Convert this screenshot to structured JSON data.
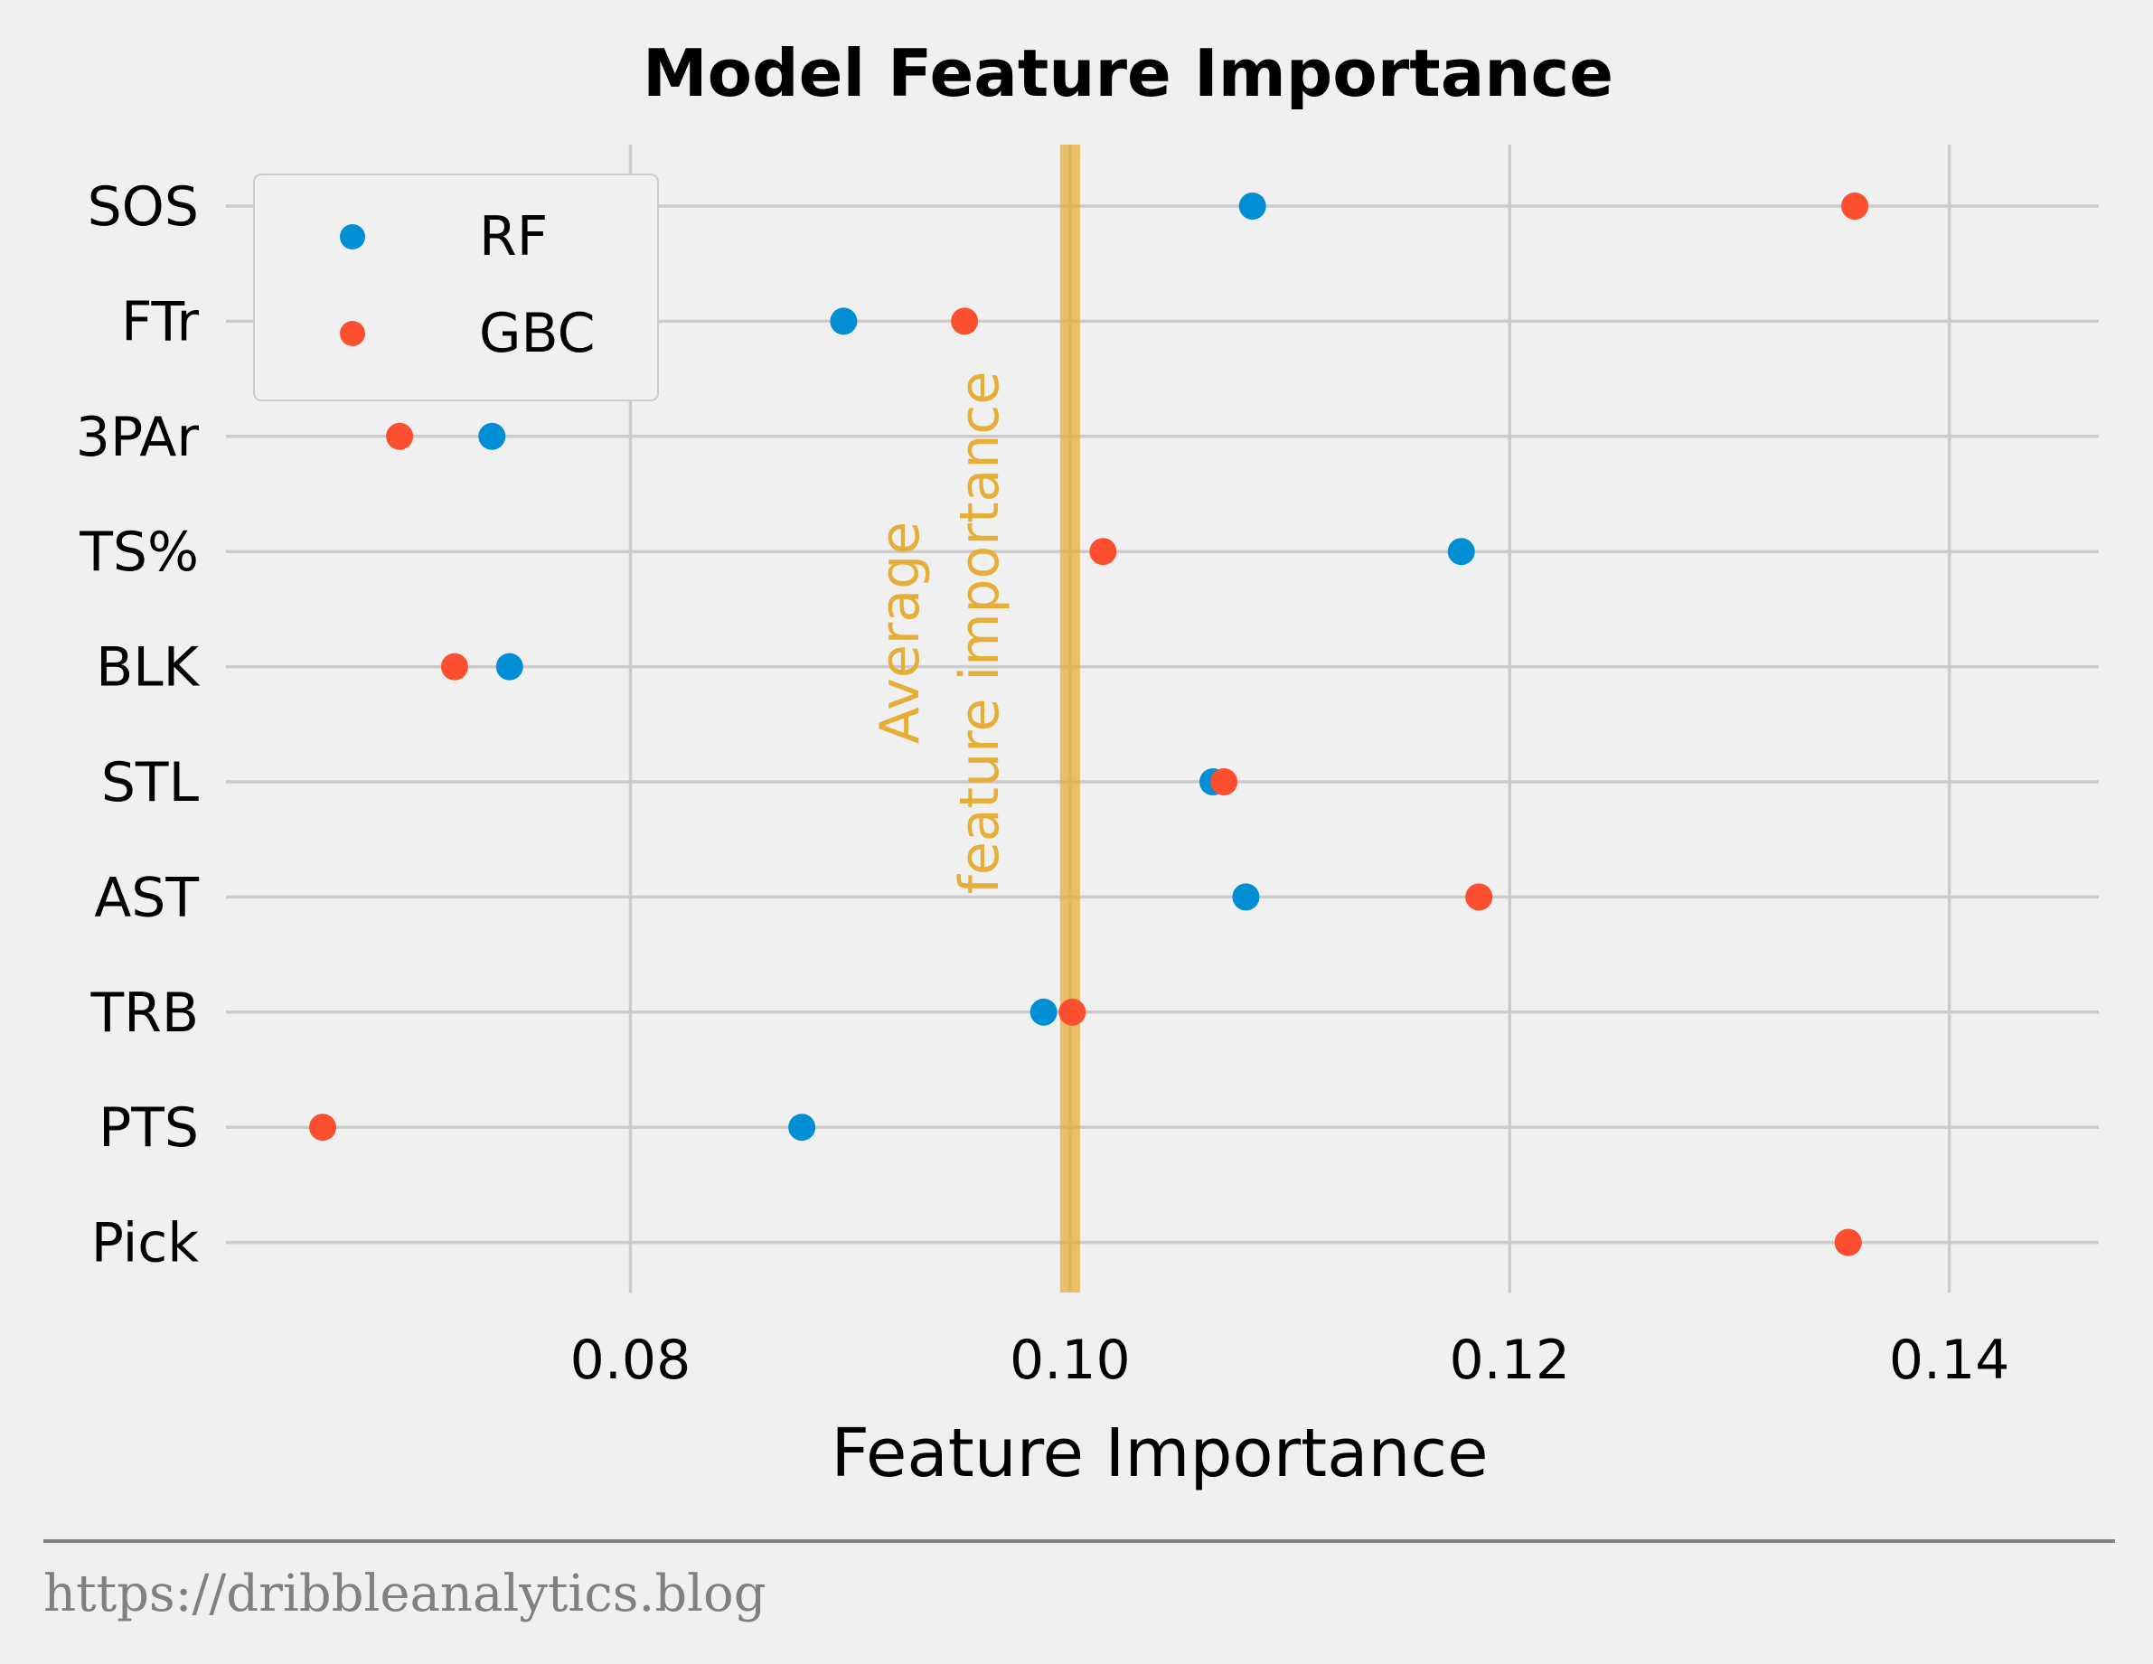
{
  "chart_data": {
    "type": "scatter",
    "title": "Model Feature Importance",
    "xlabel": "Feature Importance",
    "ylabel": "",
    "xlim": [
      0.0616,
      0.1468
    ],
    "xticks": [
      0.08,
      0.1,
      0.12,
      0.14
    ],
    "xtick_labels": [
      "0.08",
      "0.10",
      "0.12",
      "0.14"
    ],
    "categories": [
      "SOS",
      "FTr",
      "3PAr",
      "TS%",
      "BLK",
      "STL",
      "AST",
      "TRB",
      "PTS",
      "Pick"
    ],
    "grid": true,
    "legend_position": "top-left",
    "series": [
      {
        "name": "RF",
        "color": "#008fd5",
        "values": [
          0.1083,
          0.0897,
          0.0737,
          0.1178,
          0.0745,
          0.1065,
          0.108,
          0.0988,
          0.0878,
          0.1354
        ]
      },
      {
        "name": "GBC",
        "color": "#fc4f30",
        "values": [
          0.1357,
          0.0952,
          0.0695,
          0.1015,
          0.072,
          0.107,
          0.1186,
          0.1001,
          0.066,
          0.1354
        ]
      }
    ],
    "reference_line": {
      "x": 0.1,
      "color": "#e5ae38",
      "label": "Average\nfeature importance"
    }
  },
  "footer": {
    "text": "https://dribbleanalytics.blog"
  },
  "colors": {
    "background": "#f0f0f0",
    "grid": "#cbcbcb",
    "footer": "#808080"
  }
}
